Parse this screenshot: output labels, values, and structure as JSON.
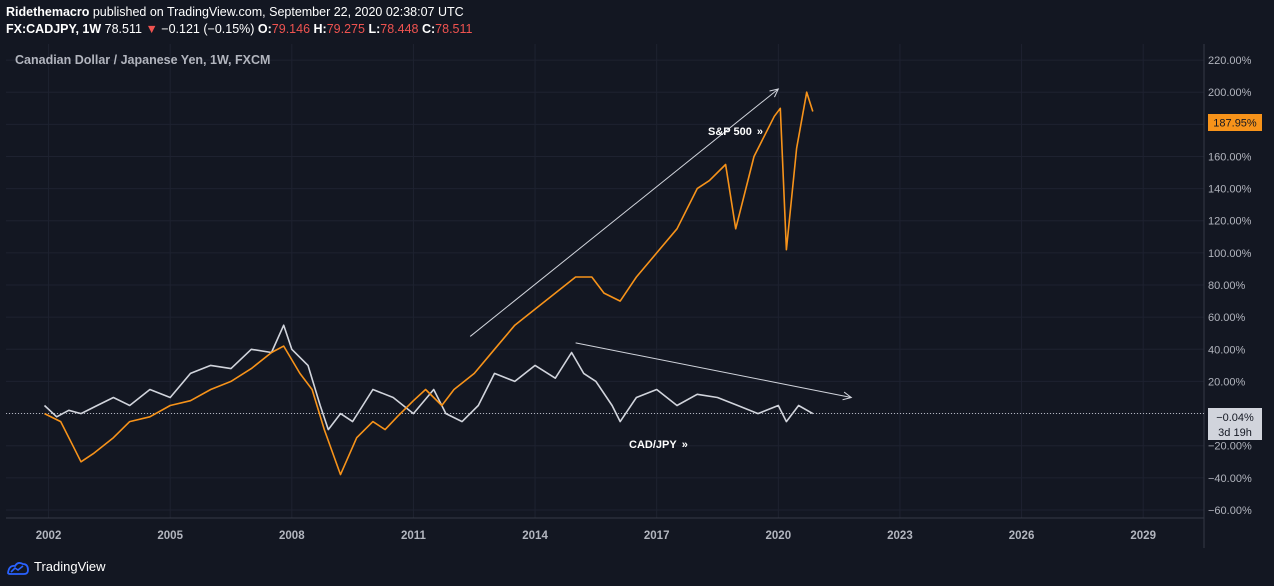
{
  "header": {
    "author": "Ridethemacro",
    "published_text": " published on TradingView.com, September 22, 2020 02:38:07 UTC",
    "symbol": "FX:CADJPY, 1W",
    "last": "78.511",
    "change_arrow": "▼",
    "change": "−0.121 (−0.15%)",
    "o_label": "O:",
    "o_value": "79.146",
    "h_label": "H:",
    "h_value": "79.275",
    "l_label": "L:",
    "l_value": "78.448",
    "c_label": "C:",
    "c_value": "78.511"
  },
  "chart_title": "Canadian Dollar / Japanese Yen, 1W, FXCM",
  "price_badges": {
    "spx": "187.95%",
    "cadjpy": "−0.04%",
    "countdown": "3d 19h"
  },
  "annotations": {
    "spx_label": "S&P 500",
    "cadjpy_label": "CAD/JPY",
    "chevron": "»"
  },
  "footer": {
    "brand": "TradingView"
  },
  "colors": {
    "background": "#131722",
    "grid": "#1e2230",
    "spx": "#f7931a",
    "cadjpy": "#d1d4dc",
    "text": "#b2b5be",
    "badge_spx": "#f7931a",
    "badge_cad": "#d1d4dc"
  },
  "chart_data": {
    "type": "line",
    "title": "Canadian Dollar / Japanese Yen, 1W, FXCM",
    "xlabel": "",
    "ylabel": "",
    "y_unit": "%",
    "x_range": [
      2000.95,
      2030.5
    ],
    "ylim": [
      -65,
      230
    ],
    "x_ticks": [
      2002,
      2005,
      2008,
      2011,
      2014,
      2017,
      2020,
      2023,
      2026,
      2029
    ],
    "x_tick_labels": [
      "2002",
      "2005",
      "2008",
      "2011",
      "2014",
      "2017",
      "2020",
      "2023",
      "2026",
      "2029"
    ],
    "y_ticks": [
      220,
      200,
      180,
      160,
      140,
      120,
      100,
      80,
      60,
      40,
      20,
      0,
      -20,
      -40,
      -60
    ],
    "y_tick_labels": [
      "220.00%",
      "200.00%",
      "180.00%",
      "160.00%",
      "140.00%",
      "120.00%",
      "100.00%",
      "80.00%",
      "60.00%",
      "40.00%",
      "20.00%",
      "0.00%",
      "−20.00%",
      "−40.00%",
      "−60.00%"
    ],
    "grid": true,
    "series": [
      {
        "name": "S&P 500",
        "x": [
          2001.9,
          2002.3,
          2002.6,
          2002.8,
          2003.1,
          2003.6,
          2004.0,
          2004.5,
          2005.0,
          2005.5,
          2006.0,
          2006.5,
          2007.0,
          2007.5,
          2007.8,
          2008.2,
          2008.5,
          2008.8,
          2009.2,
          2009.6,
          2010.0,
          2010.3,
          2010.6,
          2011.0,
          2011.3,
          2011.7,
          2012.0,
          2012.5,
          2013.0,
          2013.5,
          2014.0,
          2014.5,
          2015.0,
          2015.4,
          2015.7,
          2016.1,
          2016.5,
          2017.0,
          2017.5,
          2018.0,
          2018.3,
          2018.7,
          2018.95,
          2019.4,
          2019.9,
          2020.05,
          2020.2,
          2020.45,
          2020.7,
          2020.85
        ],
        "values": [
          0,
          -5,
          -20,
          -30,
          -25,
          -15,
          -5,
          -2,
          5,
          8,
          15,
          20,
          28,
          38,
          42,
          25,
          15,
          -10,
          -38,
          -15,
          -5,
          -10,
          -2,
          8,
          15,
          5,
          15,
          25,
          40,
          55,
          65,
          75,
          85,
          85,
          75,
          70,
          85,
          100,
          115,
          140,
          145,
          155,
          115,
          160,
          185,
          190,
          102,
          165,
          200,
          188
        ]
      },
      {
        "name": "CAD/JPY",
        "x": [
          2001.9,
          2002.2,
          2002.5,
          2002.8,
          2003.2,
          2003.6,
          2004.0,
          2004.5,
          2005.0,
          2005.5,
          2006.0,
          2006.5,
          2007.0,
          2007.5,
          2007.8,
          2008.0,
          2008.4,
          2008.7,
          2008.9,
          2009.2,
          2009.5,
          2010.0,
          2010.5,
          2011.0,
          2011.5,
          2011.8,
          2012.2,
          2012.6,
          2013.0,
          2013.5,
          2014.0,
          2014.5,
          2014.9,
          2015.2,
          2015.5,
          2015.9,
          2016.1,
          2016.5,
          2017.0,
          2017.5,
          2018.0,
          2018.5,
          2019.0,
          2019.5,
          2020.0,
          2020.2,
          2020.5,
          2020.85
        ],
        "values": [
          5,
          -2,
          2,
          0,
          5,
          10,
          5,
          15,
          10,
          25,
          30,
          28,
          40,
          38,
          55,
          40,
          30,
          5,
          -10,
          0,
          -5,
          15,
          10,
          0,
          15,
          0,
          -5,
          5,
          25,
          20,
          30,
          22,
          38,
          25,
          20,
          5,
          -5,
          10,
          15,
          5,
          12,
          10,
          5,
          0,
          5,
          -5,
          5,
          0
        ]
      }
    ],
    "arrows": [
      {
        "from": [
          2012.4,
          48
        ],
        "to": [
          2020.0,
          202
        ]
      },
      {
        "from": [
          2015.0,
          44
        ],
        "to": [
          2021.8,
          10
        ]
      }
    ]
  }
}
